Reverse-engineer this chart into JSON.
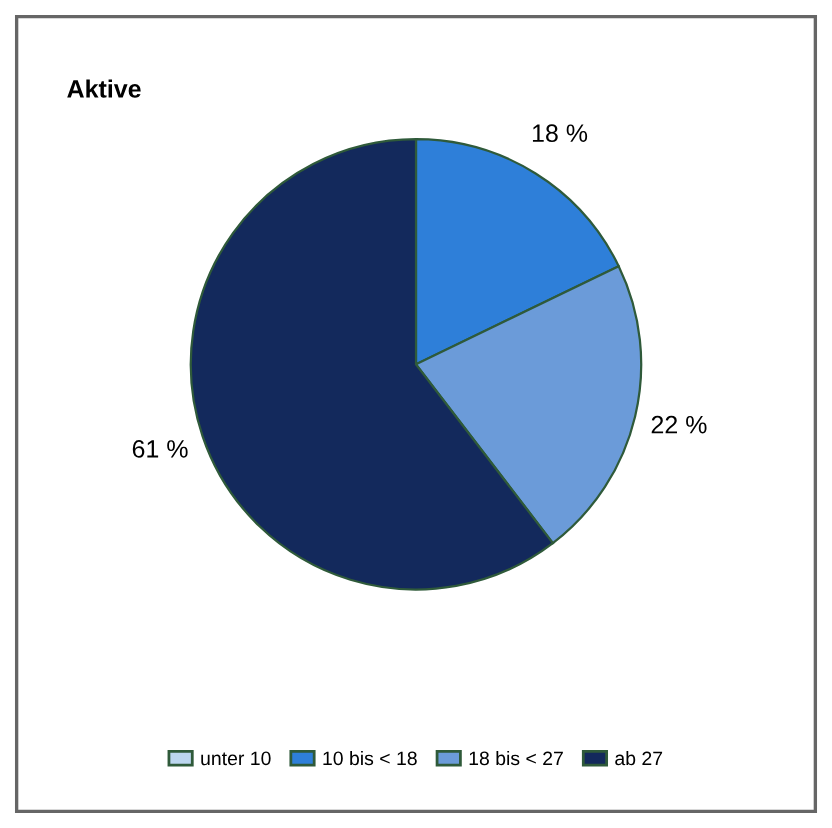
{
  "chart_data": {
    "type": "pie",
    "title": "Aktive",
    "categories": [
      "unter 10",
      "10 bis < 18",
      "18 bis < 27",
      "ab 27"
    ],
    "values": [
      0,
      18,
      22,
      61
    ],
    "colors": [
      "#bcd6ef",
      "#2e7fd9",
      "#6b9bd9",
      "#13295c"
    ],
    "value_labels": [
      null,
      "18 %",
      "22 %",
      "61 %"
    ],
    "legend": "bottom"
  }
}
